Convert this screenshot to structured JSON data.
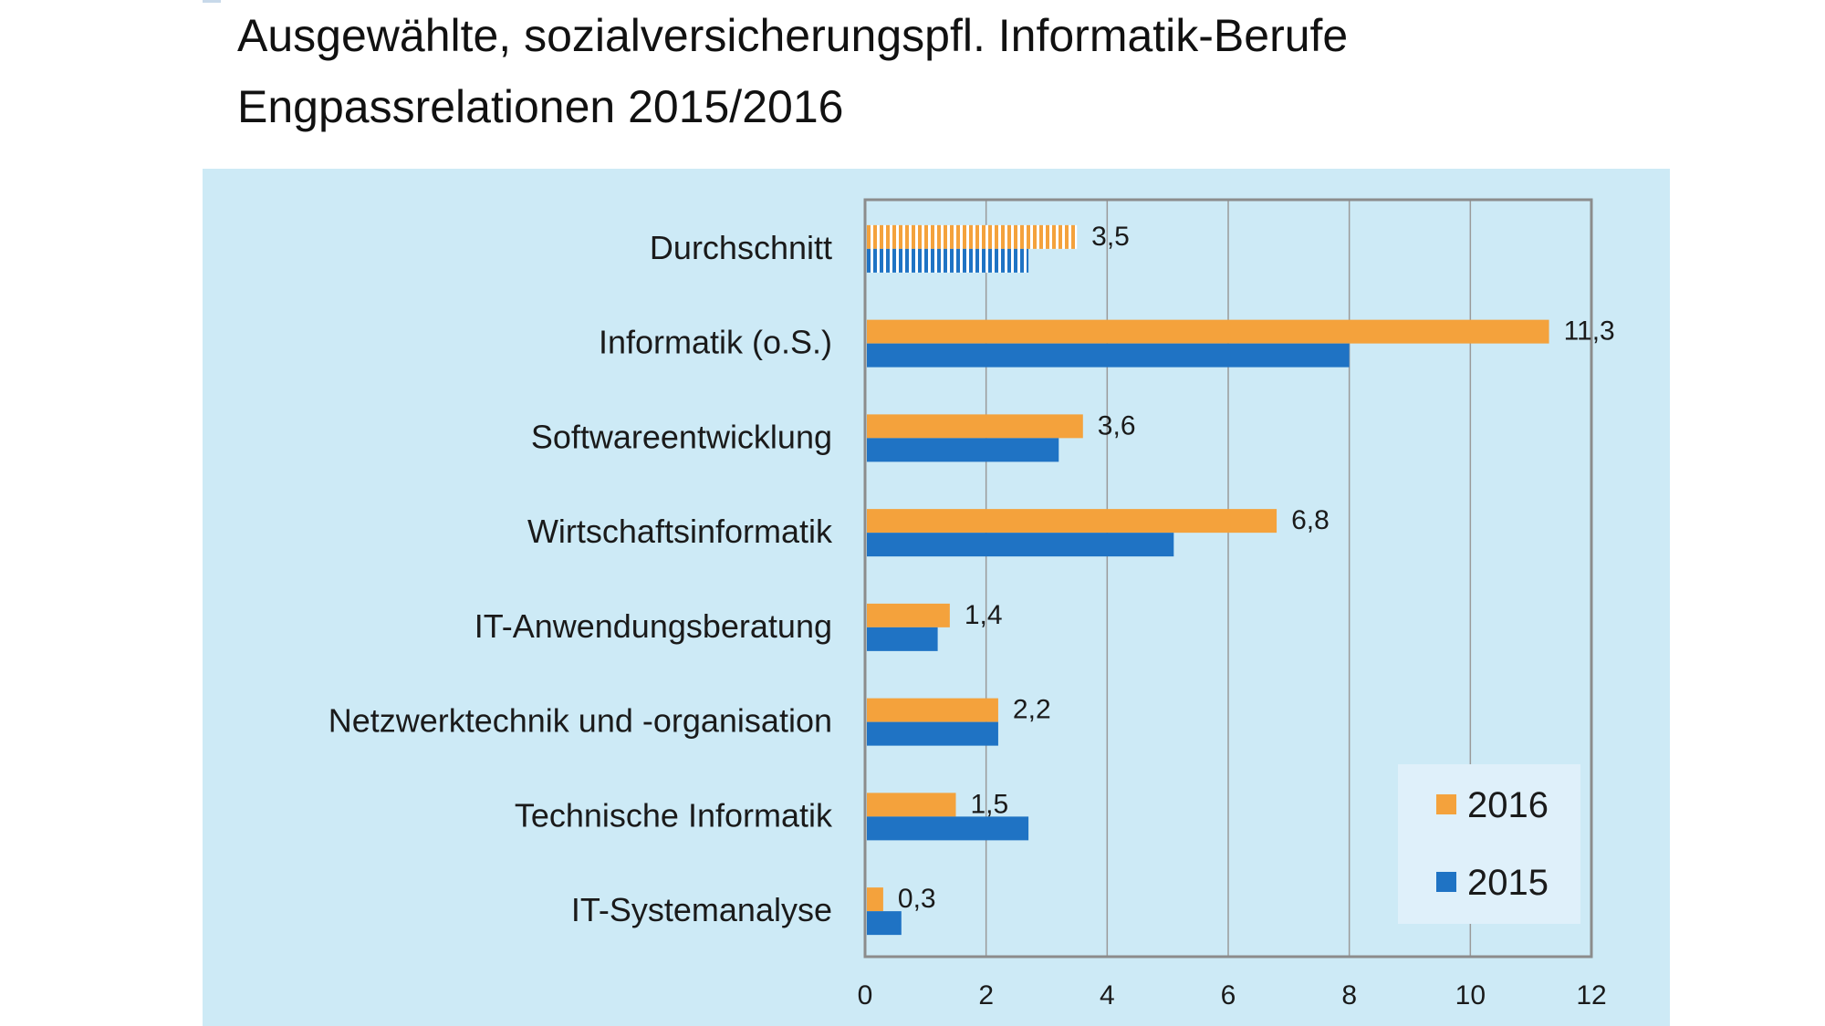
{
  "title": {
    "line1": "Ausgewählte, sozialversicherungspfl. Informatik-Berufe",
    "line2": "Engpassrelationen 2015/2016"
  },
  "colors": {
    "panel_bg": "#cdeaf6",
    "series_2016": "#f4a23c",
    "series_2015": "#1f73c4",
    "legend_bg": "#dff0fa",
    "gridline": "#9a9a9a",
    "frame": "#8c8c8c"
  },
  "chart_data": {
    "type": "bar",
    "orientation": "horizontal",
    "title": "Ausgewählte, sozialversicherungspfl. Informatik-Berufe Engpassrelationen 2015/2016",
    "xlabel": "",
    "ylabel": "",
    "xlim": [
      0,
      12
    ],
    "x_ticks": [
      0,
      2,
      4,
      6,
      8,
      10,
      12
    ],
    "x_tick_labels": [
      "0",
      "2",
      "4",
      "6",
      "8",
      "10",
      "12"
    ],
    "grid": "vertical",
    "legend_position": "bottom-right",
    "categories": [
      "Durchschnitt",
      "Informatik (o.S.)",
      "Softwareentwicklung",
      "Wirtschaftsinformatik",
      "IT-Anwendungsberatung",
      "Netzwerktechnik und -organisation",
      "Technische Informatik",
      "IT-Systemanalyse"
    ],
    "series": [
      {
        "name": "2016",
        "values": [
          3.5,
          11.3,
          3.6,
          6.8,
          1.4,
          2.2,
          1.5,
          0.3
        ],
        "data_labels": [
          "3,5",
          "11,3",
          "3,6",
          "6,8",
          "1,4",
          "2,2",
          "1,5",
          "0,3"
        ]
      },
      {
        "name": "2015",
        "values": [
          2.7,
          8.0,
          3.2,
          5.1,
          1.2,
          2.2,
          2.7,
          0.6
        ]
      }
    ],
    "hatched_categories": [
      "Durchschnitt"
    ]
  }
}
